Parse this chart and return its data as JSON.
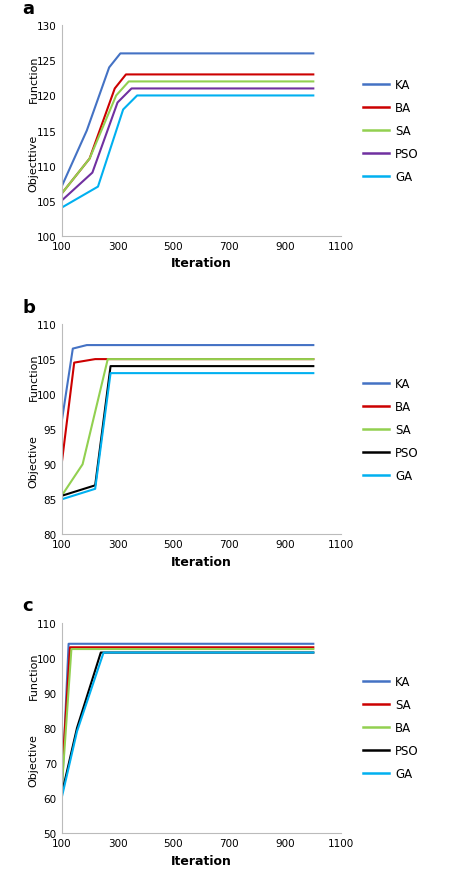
{
  "subplots": [
    {
      "label": "a",
      "ylim": [
        100,
        130
      ],
      "yticks": [
        100,
        105,
        110,
        115,
        120,
        125,
        130
      ],
      "xlim": [
        100,
        1100
      ],
      "xticks": [
        100,
        300,
        500,
        700,
        900,
        1100
      ],
      "ylabel_top": "Function",
      "ylabel_bottom": "Objecttive",
      "xlabel": "Iteration",
      "legend": [
        "KA",
        "BA",
        "SA",
        "PSO",
        "GA"
      ],
      "legend_colors": [
        "#4472C4",
        "#CC0000",
        "#92D050",
        "#7030A0",
        "#00B0F0"
      ],
      "series": [
        {
          "name": "KA",
          "color": "#4472C4",
          "x": [
            100,
            190,
            270,
            310,
            1000
          ],
          "y": [
            107,
            115,
            124,
            126,
            126
          ]
        },
        {
          "name": "BA",
          "color": "#CC0000",
          "x": [
            100,
            200,
            290,
            330,
            1000
          ],
          "y": [
            106,
            111,
            121,
            123,
            123
          ]
        },
        {
          "name": "SA",
          "color": "#92D050",
          "x": [
            100,
            200,
            295,
            340,
            1000
          ],
          "y": [
            106,
            111,
            120,
            122,
            122
          ]
        },
        {
          "name": "PSO",
          "color": "#7030A0",
          "x": [
            100,
            210,
            300,
            350,
            1000
          ],
          "y": [
            105,
            109,
            119,
            121,
            121
          ]
        },
        {
          "name": "GA",
          "color": "#00B0F0",
          "x": [
            100,
            230,
            320,
            370,
            1000
          ],
          "y": [
            104,
            107,
            118,
            120,
            120
          ]
        }
      ]
    },
    {
      "label": "b",
      "ylim": [
        80,
        110
      ],
      "yticks": [
        80,
        85,
        90,
        95,
        100,
        105,
        110
      ],
      "xlim": [
        100,
        1100
      ],
      "xticks": [
        100,
        300,
        500,
        700,
        900,
        1100
      ],
      "ylabel_top": "Function",
      "ylabel_bottom": "Objective",
      "xlabel": "Iteration",
      "legend": [
        "KA",
        "BA",
        "SA",
        "PSO",
        "GA"
      ],
      "legend_colors": [
        "#4472C4",
        "#CC0000",
        "#92D050",
        "#000000",
        "#00B0F0"
      ],
      "series": [
        {
          "name": "KA",
          "color": "#4472C4",
          "x": [
            100,
            140,
            190,
            1000
          ],
          "y": [
            96,
            106.5,
            107,
            107
          ]
        },
        {
          "name": "BA",
          "color": "#CC0000",
          "x": [
            100,
            145,
            220,
            1000
          ],
          "y": [
            90,
            104.5,
            105,
            105
          ]
        },
        {
          "name": "SA",
          "color": "#92D050",
          "x": [
            100,
            175,
            265,
            1000
          ],
          "y": [
            85.5,
            90,
            105,
            105
          ]
        },
        {
          "name": "PSO",
          "color": "#000000",
          "x": [
            100,
            220,
            275,
            1000
          ],
          "y": [
            85.5,
            87,
            104,
            104
          ]
        },
        {
          "name": "GA",
          "color": "#00B0F0",
          "x": [
            100,
            220,
            275,
            1000
          ],
          "y": [
            85,
            86.5,
            103,
            103
          ]
        }
      ]
    },
    {
      "label": "c",
      "ylim": [
        50,
        110
      ],
      "yticks": [
        50,
        60,
        70,
        80,
        90,
        100,
        110
      ],
      "xlim": [
        100,
        1100
      ],
      "xticks": [
        100,
        300,
        500,
        700,
        900,
        1100
      ],
      "ylabel_top": "Function",
      "ylabel_bottom": "Objective",
      "xlabel": "Iteration",
      "legend": [
        "KA",
        "SA",
        "BA",
        "PSO",
        "GA"
      ],
      "legend_colors": [
        "#4472C4",
        "#CC0000",
        "#92D050",
        "#000000",
        "#00B0F0"
      ],
      "series": [
        {
          "name": "KA",
          "color": "#4472C4",
          "x": [
            100,
            125,
            160,
            1000
          ],
          "y": [
            60,
            104,
            104,
            104
          ]
        },
        {
          "name": "SA",
          "color": "#CC0000",
          "x": [
            100,
            130,
            175,
            1000
          ],
          "y": [
            65,
            103,
            103,
            103
          ]
        },
        {
          "name": "BA",
          "color": "#92D050",
          "x": [
            100,
            135,
            185,
            1000
          ],
          "y": [
            62,
            102.5,
            102.5,
            102.5
          ]
        },
        {
          "name": "PSO",
          "color": "#000000",
          "x": [
            100,
            155,
            240,
            1000
          ],
          "y": [
            61,
            80,
            101.5,
            101.5
          ]
        },
        {
          "name": "GA",
          "color": "#00B0F0",
          "x": [
            100,
            155,
            250,
            1000
          ],
          "y": [
            60,
            79,
            101.5,
            101.5
          ]
        }
      ]
    }
  ],
  "background_color": "#FFFFFF",
  "fig_width": 4.74,
  "fig_height": 8.78,
  "dpi": 100
}
